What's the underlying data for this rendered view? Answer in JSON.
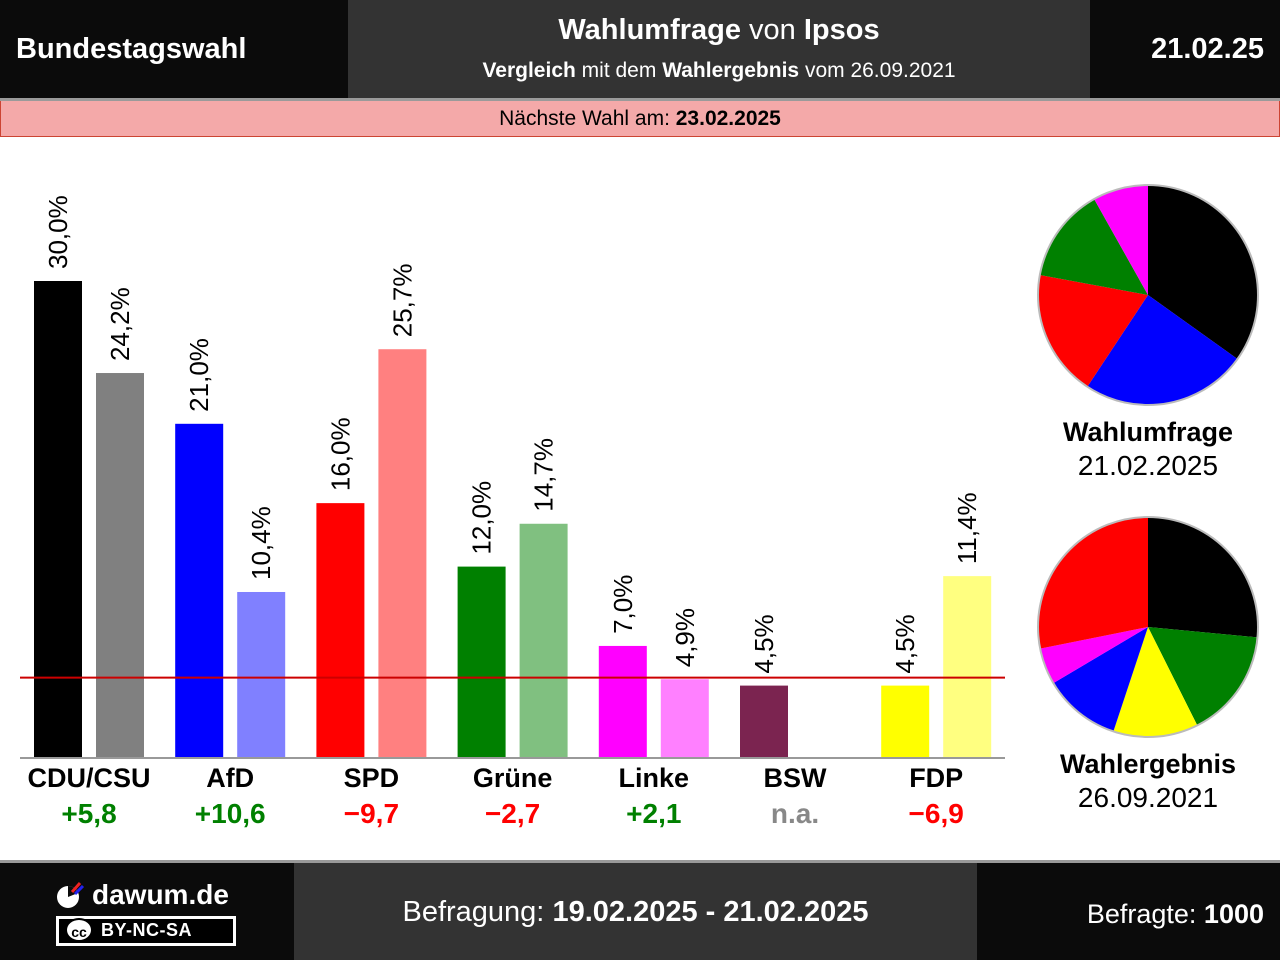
{
  "header": {
    "left": "Bundestagswahl",
    "title_bold1": "Wahlumfrage",
    "title_mid": " von ",
    "title_bold2": "Ipsos",
    "sub_bold1": "Vergleich",
    "sub_mid1": " mit dem ",
    "sub_bold2": "Wahlergebnis",
    "sub_mid2": " vom 26.09.2021",
    "date": "21.02.25"
  },
  "banner": {
    "label": "Nächste Wahl am: ",
    "value": "23.02.2025"
  },
  "chart_data": {
    "type": "bar",
    "categories": [
      "CDU/CSU",
      "AfD",
      "SPD",
      "Grüne",
      "Linke",
      "BSW",
      "FDP"
    ],
    "series": [
      {
        "values": [
          30.0,
          21.0,
          16.0,
          12.0,
          7.0,
          4.5,
          4.5
        ],
        "colors": [
          "#000000",
          "#0000ff",
          "#ff0000",
          "#008000",
          "#ff00ff",
          "#7b2450",
          "#ffff00"
        ]
      },
      {
        "values": [
          24.2,
          10.4,
          25.7,
          14.7,
          4.9,
          null,
          11.4
        ],
        "colors": [
          "#808080",
          "#8080ff",
          "#ff8080",
          "#80c080",
          "#ff80ff",
          null,
          "#ffff80"
        ]
      }
    ],
    "value_labels": [
      [
        "30,0%",
        "24,2%"
      ],
      [
        "21,0%",
        "10,4%"
      ],
      [
        "16,0%",
        "25,7%"
      ],
      [
        "12,0%",
        "14,7%"
      ],
      [
        "7,0%",
        "4,9%"
      ],
      [
        "4,5%",
        null
      ],
      [
        "4,5%",
        "11,4%"
      ]
    ],
    "differences": [
      "+5,8",
      "+10,6",
      "−9,7",
      "−2,7",
      "+2,1",
      "n.a.",
      "−6,9"
    ],
    "difference_colors": [
      "#008000",
      "#008000",
      "#ff0000",
      "#ff0000",
      "#008000",
      "#888888",
      "#ff0000"
    ],
    "threshold": 5.0,
    "threshold_color": "#cc0000",
    "ylim": [
      0,
      30
    ],
    "pies": [
      {
        "title": "Wahlumfrage",
        "date": "21.02.2025",
        "slices": [
          {
            "value": 30.0,
            "color": "#000000"
          },
          {
            "value": 21.0,
            "color": "#0000ff"
          },
          {
            "value": 16.0,
            "color": "#ff0000"
          },
          {
            "value": 12.0,
            "color": "#008000"
          },
          {
            "value": 7.0,
            "color": "#ff00ff"
          }
        ]
      },
      {
        "title": "Wahlergebnis",
        "date": "26.09.2021",
        "slices": [
          {
            "value": 24.2,
            "color": "#000000"
          },
          {
            "value": 14.7,
            "color": "#008000"
          },
          {
            "value": 11.4,
            "color": "#ffff00"
          },
          {
            "value": 10.4,
            "color": "#0000ff"
          },
          {
            "value": 4.9,
            "color": "#ff00ff"
          },
          {
            "value": 25.7,
            "color": "#ff0000"
          }
        ]
      }
    ]
  },
  "footer": {
    "logo": "dawum.de",
    "license": "BY-NC-SA",
    "license_icon": "cc",
    "period_label": "Befragung: ",
    "period_value": "19.02.2025 - 21.02.2025",
    "respondents_label": "Befragte: ",
    "respondents_value": "1000"
  }
}
